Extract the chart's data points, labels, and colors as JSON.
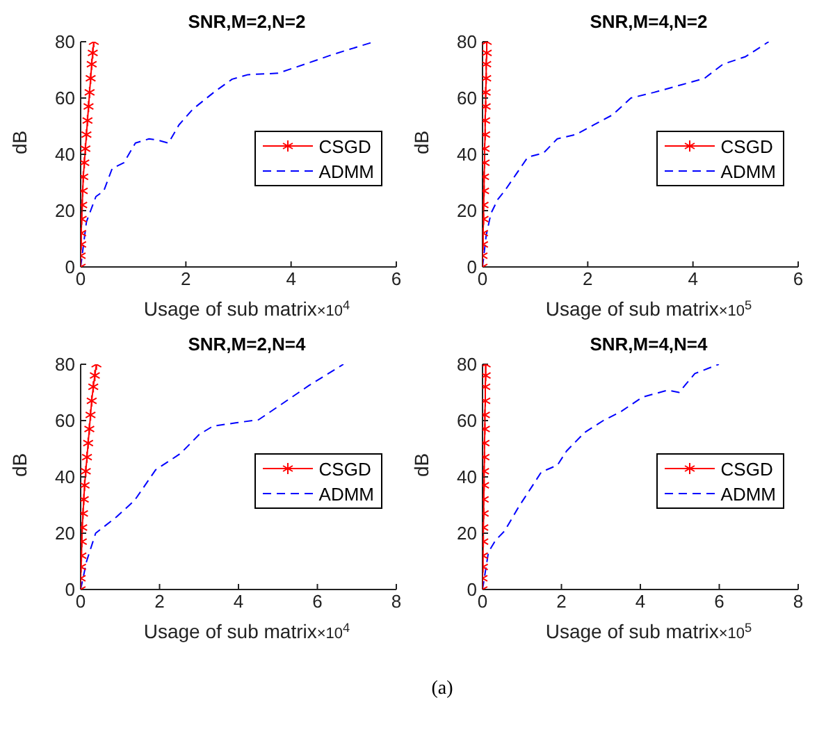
{
  "chart_data": [
    {
      "type": "line",
      "title": "SNR,M=2,N=2",
      "xlabel": "Usage of sub matrix",
      "ylabel": "dB",
      "annotations": [
        "×10$^{4}$"
      ],
      "xlim": [
        0,
        6
      ],
      "xticks": [
        0,
        2,
        4,
        6
      ],
      "ylim": [
        0,
        80
      ],
      "yticks": [
        0,
        20,
        40,
        60,
        80
      ],
      "grid": false,
      "legend": "right",
      "series": [
        {
          "name": "CSGD",
          "color": "#ff0000",
          "marker": "cross",
          "line_style": "solid",
          "x": [
            0,
            0,
            0.01,
            0.01,
            0.02,
            0.03,
            0.04,
            0.05,
            0.07,
            0.09,
            0.11,
            0.13,
            0.15,
            0.17,
            0.19,
            0.21,
            0.23,
            0.25
          ],
          "values": [
            0,
            4,
            8,
            12,
            17,
            22,
            27,
            32,
            37,
            42,
            47,
            52,
            57,
            62,
            67,
            72,
            76,
            80
          ]
        },
        {
          "name": "ADMM",
          "color": "#0000ff",
          "marker": "none",
          "line_style": "dashed",
          "x": [
            0,
            0.11,
            0.29,
            0.44,
            0.6,
            0.82,
            1.04,
            1.3,
            1.47,
            1.67,
            1.87,
            2.13,
            2.53,
            2.88,
            3.18,
            3.75,
            4.1,
            4.8,
            5.58
          ],
          "values": [
            0,
            16,
            25,
            27,
            35,
            37,
            44,
            45.5,
            45,
            44,
            50.5,
            56,
            62,
            66.7,
            68.3,
            68.8,
            71,
            75.5,
            80
          ]
        }
      ]
    },
    {
      "type": "line",
      "title": "SNR,M=4,N=2",
      "xlabel": "Usage of sub matrix",
      "ylabel": "dB",
      "annotations": [
        "×10$^{5}$"
      ],
      "xlim": [
        0,
        6
      ],
      "xticks": [
        0,
        2,
        4,
        6
      ],
      "ylim": [
        0,
        80
      ],
      "yticks": [
        0,
        20,
        40,
        60,
        80
      ],
      "grid": false,
      "legend": "right",
      "series": [
        {
          "name": "CSGD",
          "color": "#ff0000",
          "marker": "cross",
          "line_style": "solid",
          "x": [
            0,
            0,
            0.01,
            0.01,
            0.02,
            0.02,
            0.03,
            0.03,
            0.04,
            0.04,
            0.05,
            0.05,
            0.06,
            0.06,
            0.07,
            0.07,
            0.08,
            0.08
          ],
          "values": [
            0,
            4,
            8,
            12,
            17,
            22,
            27,
            32,
            37,
            42,
            47,
            52,
            57,
            62,
            67,
            72,
            76,
            80
          ]
        },
        {
          "name": "ADMM",
          "color": "#0000ff",
          "marker": "none",
          "line_style": "dashed",
          "x": [
            0,
            0.07,
            0.16,
            0.29,
            0.42,
            0.64,
            0.86,
            1.16,
            1.42,
            1.77,
            2.12,
            2.47,
            2.82,
            3.26,
            3.78,
            4.22,
            4.57,
            5.0,
            5.44
          ],
          "values": [
            0,
            11.3,
            19,
            24,
            27,
            33,
            39,
            40.5,
            45.5,
            47,
            50.5,
            54,
            60,
            62,
            64.7,
            67,
            72,
            74.7,
            80
          ]
        }
      ]
    },
    {
      "type": "line",
      "title": "SNR,M=2,N=4",
      "xlabel": "Usage of sub matrix",
      "ylabel": "dB",
      "annotations": [
        "×10$^{4}$"
      ],
      "xlim": [
        0,
        8
      ],
      "xticks": [
        0,
        2,
        4,
        6,
        8
      ],
      "ylim": [
        0,
        80
      ],
      "yticks": [
        0,
        20,
        40,
        60,
        80
      ],
      "grid": false,
      "legend": "right",
      "series": [
        {
          "name": "CSGD",
          "color": "#ff0000",
          "marker": "cross",
          "line_style": "solid",
          "x": [
            0,
            0,
            0.01,
            0.02,
            0.03,
            0.04,
            0.06,
            0.08,
            0.1,
            0.13,
            0.16,
            0.19,
            0.22,
            0.25,
            0.28,
            0.32,
            0.36,
            0.4
          ],
          "values": [
            0,
            4,
            8,
            12,
            17,
            22,
            27,
            32,
            37,
            42,
            47,
            52,
            57,
            62,
            67,
            72,
            76,
            80
          ]
        },
        {
          "name": "ADMM",
          "color": "#0000ff",
          "marker": "none",
          "line_style": "dashed",
          "x": [
            0,
            0.15,
            0.38,
            0.91,
            1.37,
            1.9,
            2.53,
            3.0,
            3.35,
            3.93,
            4.51,
            5.09,
            5.79,
            6.66
          ],
          "values": [
            0,
            10,
            20,
            25.8,
            31.7,
            42.5,
            48.3,
            55,
            58,
            59.2,
            60.3,
            65.8,
            72.5,
            80
          ]
        }
      ]
    },
    {
      "type": "line",
      "title": "SNR,M=4,N=4",
      "xlabel": "Usage of sub matrix",
      "ylabel": "dB",
      "annotations": [
        "×10$^{5}$",
        "(a)"
      ],
      "xlim": [
        0,
        8
      ],
      "xticks": [
        0,
        2,
        4,
        6,
        8
      ],
      "ylim": [
        0,
        80
      ],
      "yticks": [
        0,
        20,
        40,
        60,
        80
      ],
      "grid": false,
      "legend": "right",
      "series": [
        {
          "name": "CSGD",
          "color": "#ff0000",
          "marker": "cross",
          "line_style": "solid",
          "x": [
            0,
            0,
            0.01,
            0.01,
            0.02,
            0.02,
            0.03,
            0.03,
            0.04,
            0.04,
            0.05,
            0.05,
            0.06,
            0.06,
            0.07,
            0.07,
            0.08,
            0.08
          ],
          "values": [
            0,
            4,
            8,
            12,
            17,
            22,
            27,
            32,
            37,
            42,
            47,
            52,
            57,
            62,
            67,
            72,
            76,
            80
          ]
        },
        {
          "name": "ADMM",
          "color": "#0000ff",
          "marker": "none",
          "line_style": "dashed",
          "x": [
            0,
            0.15,
            0.33,
            0.56,
            0.91,
            1.49,
            1.9,
            2.13,
            2.59,
            3.06,
            3.52,
            4.05,
            4.69,
            4.98,
            5.38,
            5.99
          ],
          "values": [
            0,
            13.3,
            17.5,
            20.8,
            29.2,
            41.7,
            44.2,
            49.2,
            55.8,
            60,
            63.3,
            68.3,
            70.8,
            70,
            76.7,
            80
          ]
        }
      ]
    }
  ]
}
